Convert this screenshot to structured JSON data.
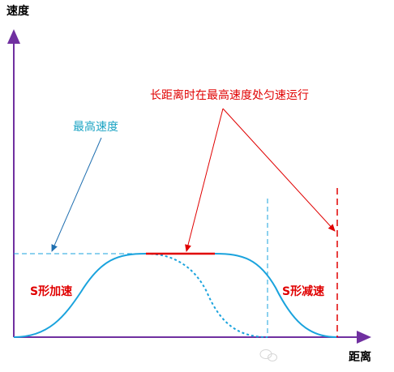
{
  "axes": {
    "y_label": "速度",
    "x_label": "距离"
  },
  "annotations": {
    "max_speed": "最高速度",
    "cruise": "长距离时在最高速度处匀速运行",
    "accel": "S形加速",
    "decel": "S形减速"
  }
}
